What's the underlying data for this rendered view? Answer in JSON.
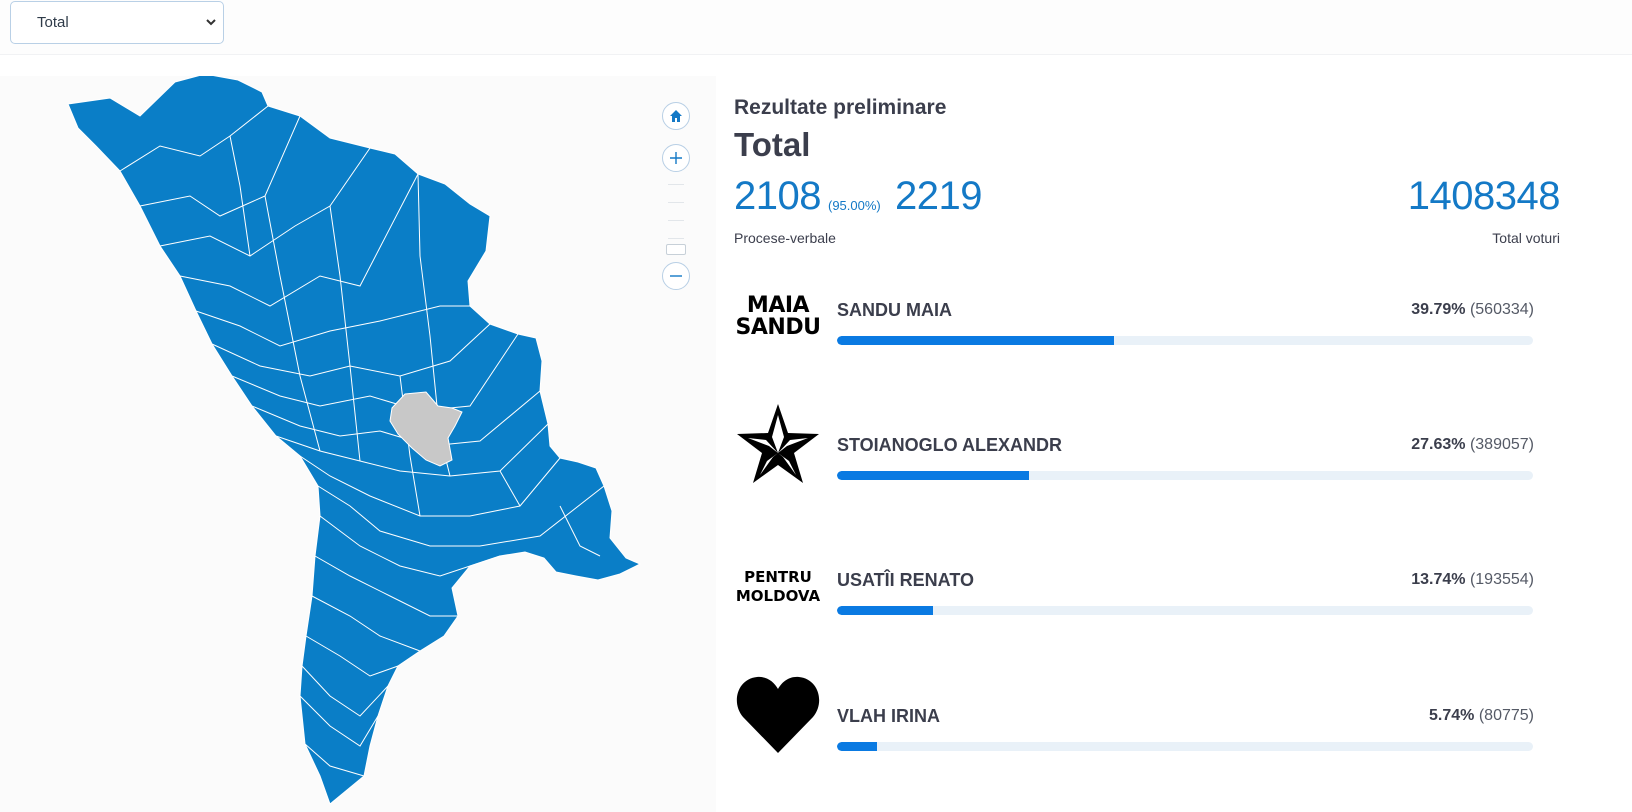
{
  "filter": {
    "selected": "Total"
  },
  "header": {
    "subtitle": "Rezultate preliminare",
    "title": "Total"
  },
  "stats": {
    "processed": "2108",
    "processed_pct": "(95.00%)",
    "total_reports": "2219",
    "reports_label": "Procese-verbale",
    "total_votes": "1408348",
    "votes_label": "Total voturi"
  },
  "candidates": [
    {
      "name": "SANDU MAIA",
      "pct": "39.79%",
      "votes": "(560334)",
      "share": 0.3979,
      "logo_lines": [
        "MAIA",
        "SANDU"
      ],
      "logo": "text-logo"
    },
    {
      "name": "STOIANOGLO ALEXANDR",
      "pct": "27.63%",
      "votes": "(389057)",
      "share": 0.2763,
      "logo": "star-icon"
    },
    {
      "name": "USATÎI RENATO",
      "pct": "13.74%",
      "votes": "(193554)",
      "share": 0.1374,
      "logo_lines": [
        "PENTRU",
        "MOLDOVA"
      ],
      "logo": "text-logo"
    },
    {
      "name": "VLAH IRINA",
      "pct": "5.74%",
      "votes": "(80775)",
      "share": 0.0574,
      "logo": "heart-icon"
    }
  ],
  "map": {
    "region_color": "#0a7ec7",
    "highlight_color": "#c8c8c8",
    "controls": [
      "home-icon",
      "plus-icon",
      "minus-icon"
    ]
  },
  "colors": {
    "accent": "#1479c6",
    "bar": "#0a7ae2",
    "bar_track": "#e9f1f8"
  }
}
